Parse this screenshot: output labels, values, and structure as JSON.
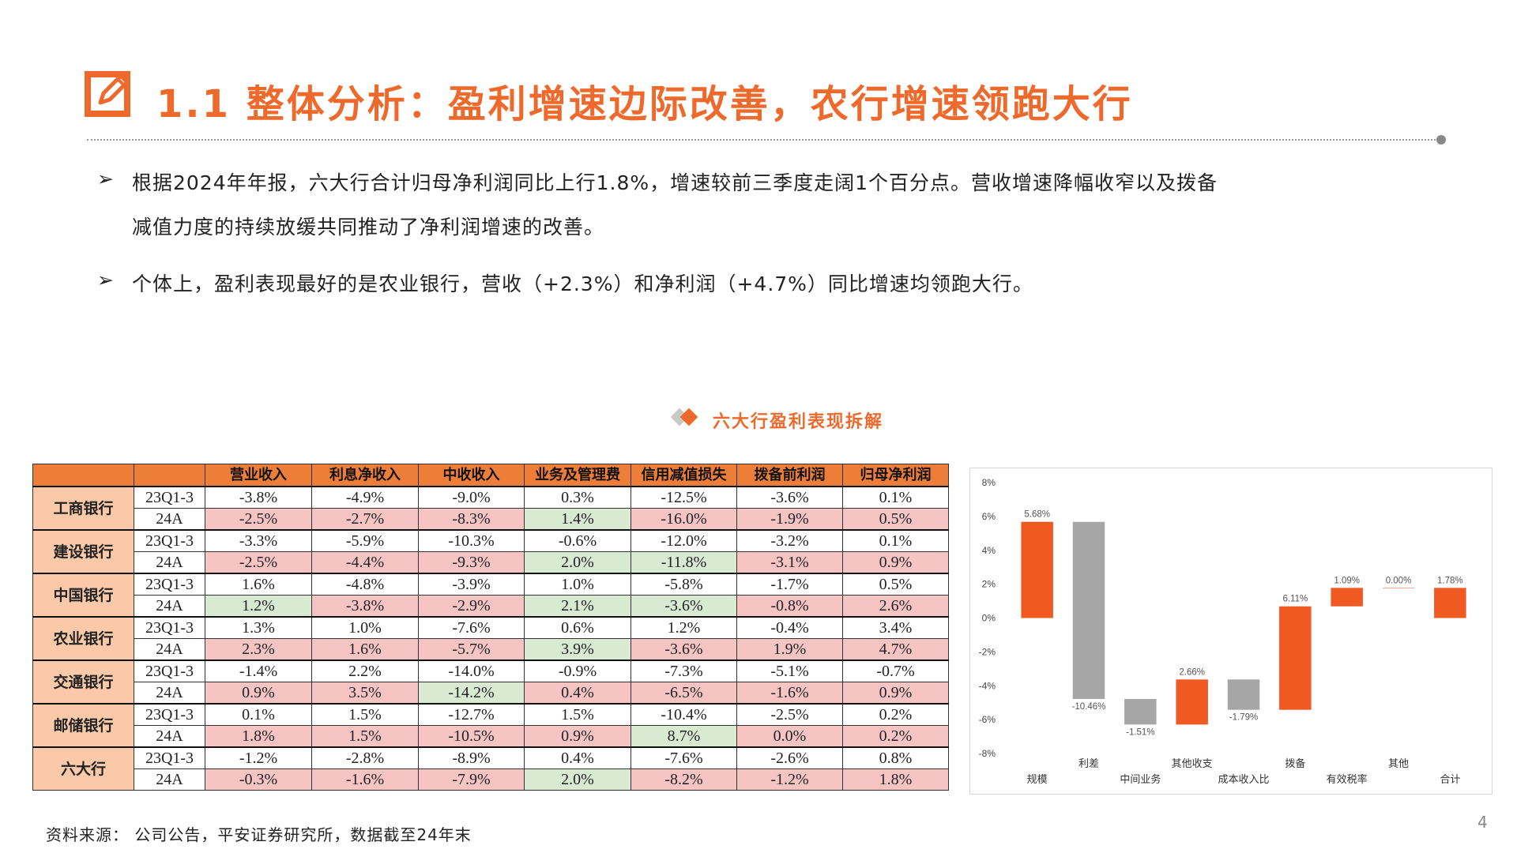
{
  "header": {
    "title": "1.1  整体分析：盈利增速边际改善，农行增速领跑大行",
    "logo_icon": "pencil-square-icon",
    "accent_color": "#ee6a2c"
  },
  "bullets": [
    {
      "line1": "根据2024年年报，六大行合计归母净利润同比上行1.8%，增速较前三季度走阔1个百分点。营收增速降幅收窄以及拨备",
      "line2": "减值力度的持续放缓共同推动了净利润增速的改善。"
    },
    {
      "line1": "个体上，盈利表现最好的是农业银行，营收（+2.3%）和净利润（+4.7%）同比增速均领跑大行。"
    }
  ],
  "bullet_marker": "➢",
  "section_title": "六大行盈利表现拆解",
  "table": {
    "headers": [
      "",
      "",
      "营业收入",
      "利息净收入",
      "中收收入",
      "业务及管理费",
      "信用减值损失",
      "拨备前利润",
      "归母净利润"
    ],
    "banks": [
      {
        "name": "工商银行",
        "rows": [
          {
            "period": "23Q1-3",
            "values": [
              "-3.8%",
              "-4.9%",
              "-9.0%",
              "0.3%",
              "-12.5%",
              "-3.6%",
              "0.1%"
            ],
            "colors": [
              "w",
              "w",
              "w",
              "w",
              "w",
              "w",
              "w"
            ]
          },
          {
            "period": "24A",
            "values": [
              "-2.5%",
              "-2.7%",
              "-8.3%",
              "1.4%",
              "-16.0%",
              "-1.9%",
              "0.5%"
            ],
            "colors": [
              "r",
              "r",
              "r",
              "g",
              "r",
              "r",
              "r"
            ]
          }
        ]
      },
      {
        "name": "建设银行",
        "rows": [
          {
            "period": "23Q1-3",
            "values": [
              "-3.3%",
              "-5.9%",
              "-10.3%",
              "-0.6%",
              "-12.0%",
              "-3.2%",
              "0.1%"
            ],
            "colors": [
              "w",
              "w",
              "w",
              "w",
              "w",
              "w",
              "w"
            ]
          },
          {
            "period": "24A",
            "values": [
              "-2.5%",
              "-4.4%",
              "-9.3%",
              "2.0%",
              "-11.8%",
              "-3.1%",
              "0.9%"
            ],
            "colors": [
              "r",
              "r",
              "r",
              "g",
              "g",
              "r",
              "r"
            ]
          }
        ]
      },
      {
        "name": "中国银行",
        "rows": [
          {
            "period": "23Q1-3",
            "values": [
              "1.6%",
              "-4.8%",
              "-3.9%",
              "1.0%",
              "-5.8%",
              "-1.7%",
              "0.5%"
            ],
            "colors": [
              "w",
              "w",
              "w",
              "w",
              "w",
              "w",
              "w"
            ]
          },
          {
            "period": "24A",
            "values": [
              "1.2%",
              "-3.8%",
              "-2.9%",
              "2.1%",
              "-3.6%",
              "-0.8%",
              "2.6%"
            ],
            "colors": [
              "g",
              "r",
              "r",
              "g",
              "g",
              "r",
              "r"
            ]
          }
        ]
      },
      {
        "name": "农业银行",
        "rows": [
          {
            "period": "23Q1-3",
            "values": [
              "1.3%",
              "1.0%",
              "-7.6%",
              "0.6%",
              "1.2%",
              "-0.4%",
              "3.4%"
            ],
            "colors": [
              "w",
              "w",
              "w",
              "w",
              "w",
              "w",
              "w"
            ]
          },
          {
            "period": "24A",
            "values": [
              "2.3%",
              "1.6%",
              "-5.7%",
              "3.9%",
              "-3.6%",
              "1.9%",
              "4.7%"
            ],
            "colors": [
              "r",
              "r",
              "r",
              "g",
              "r",
              "r",
              "r"
            ]
          }
        ]
      },
      {
        "name": "交通银行",
        "rows": [
          {
            "period": "23Q1-3",
            "values": [
              "-1.4%",
              "2.2%",
              "-14.0%",
              "-0.9%",
              "-7.3%",
              "-5.1%",
              "-0.7%"
            ],
            "colors": [
              "w",
              "w",
              "w",
              "w",
              "w",
              "w",
              "w"
            ]
          },
          {
            "period": "24A",
            "values": [
              "0.9%",
              "3.5%",
              "-14.2%",
              "0.4%",
              "-6.5%",
              "-1.6%",
              "0.9%"
            ],
            "colors": [
              "r",
              "r",
              "g",
              "r",
              "r",
              "r",
              "r"
            ]
          }
        ]
      },
      {
        "name": "邮储银行",
        "rows": [
          {
            "period": "23Q1-3",
            "values": [
              "0.1%",
              "1.5%",
              "-12.7%",
              "1.5%",
              "-10.4%",
              "-2.5%",
              "0.2%"
            ],
            "colors": [
              "w",
              "w",
              "w",
              "w",
              "w",
              "w",
              "w"
            ]
          },
          {
            "period": "24A",
            "values": [
              "1.8%",
              "1.5%",
              "-10.5%",
              "0.9%",
              "8.7%",
              "0.0%",
              "0.2%"
            ],
            "colors": [
              "r",
              "r",
              "r",
              "r",
              "g",
              "r",
              "r"
            ]
          }
        ]
      },
      {
        "name": "六大行",
        "rows": [
          {
            "period": "23Q1-3",
            "values": [
              "-1.2%",
              "-2.8%",
              "-8.9%",
              "0.4%",
              "-7.6%",
              "-2.6%",
              "0.8%"
            ],
            "colors": [
              "w",
              "w",
              "w",
              "w",
              "w",
              "w",
              "w"
            ]
          },
          {
            "period": "24A",
            "values": [
              "-0.3%",
              "-1.6%",
              "-7.9%",
              "2.0%",
              "-8.2%",
              "-1.2%",
              "1.8%"
            ],
            "colors": [
              "r",
              "r",
              "r",
              "g",
              "r",
              "r",
              "r"
            ]
          }
        ]
      }
    ],
    "colors": {
      "header": "#ed7e3a",
      "bank": "#f9c9a8",
      "red": "#f7c4c4",
      "green": "#d9ead3"
    }
  },
  "chart_data": {
    "type": "bar",
    "subtype": "waterfall",
    "categories": [
      "规模",
      "利差",
      "中间业务",
      "其他收支",
      "成本收入比",
      "拨备",
      "有效税率",
      "其他",
      "合计"
    ],
    "values": [
      5.68,
      -10.46,
      -1.51,
      2.66,
      -1.79,
      6.11,
      1.09,
      0.0,
      1.78
    ],
    "data_labels": [
      "5.68%",
      "-10.46%",
      "-1.51%",
      "2.66%",
      "-1.79%",
      "6.11%",
      "1.09%",
      "0.00%",
      "1.78%"
    ],
    "ylim": [
      -8,
      8
    ],
    "yticks": [
      8,
      6,
      4,
      2,
      0,
      -2,
      -4,
      -6,
      -8
    ],
    "ytick_labels": [
      "8%",
      "6%",
      "4%",
      "2%",
      "0%",
      "-2%",
      "-4%",
      "-6%",
      "-8%"
    ],
    "colors": {
      "positive": "#f05a22",
      "negative": "#a6a6a6"
    },
    "grid": false
  },
  "footer": {
    "source": "资料来源：  公司公告，平安证券研究所，数据截至24年末",
    "page_number": "4"
  }
}
